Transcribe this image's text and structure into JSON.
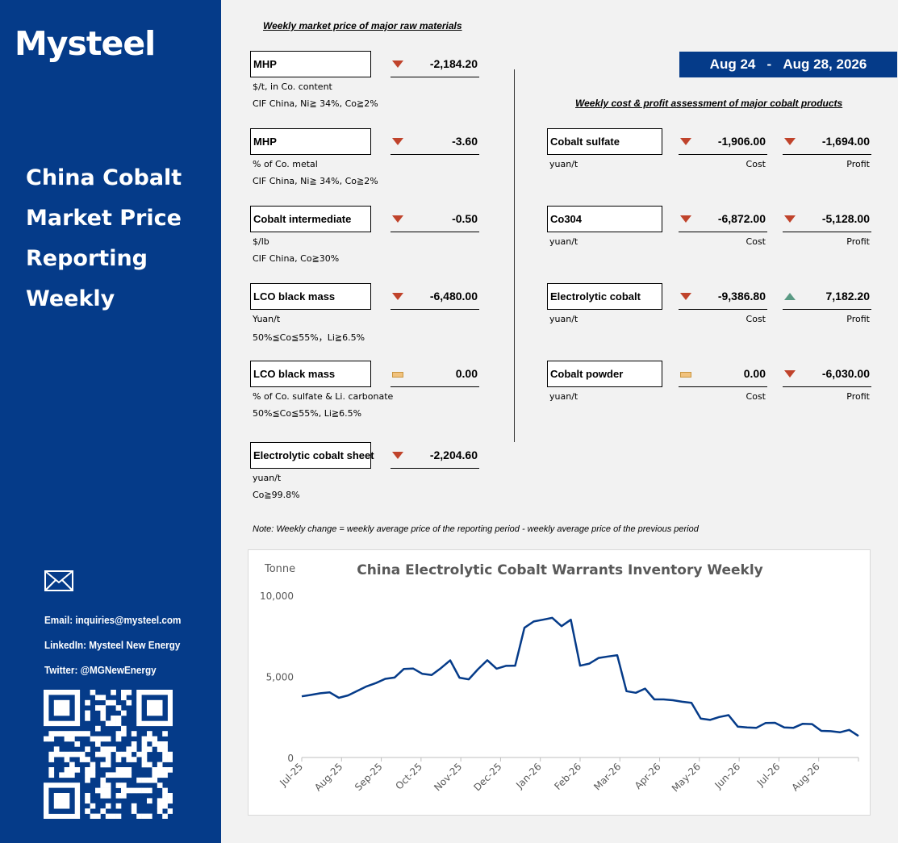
{
  "sidebar": {
    "logo": "Mysteel",
    "title_lines": [
      "China Cobalt",
      "Market Price",
      "Reporting",
      "Weekly"
    ],
    "email": "Email: inquiries@mysteel.com",
    "linkedin": "LinkedIn: Mysteel New Energy",
    "twitter": "Twitter: @MGNewEnergy",
    "icons": {
      "mail": "envelope-icon",
      "qr": "qr-code"
    }
  },
  "raw_heading": "Weekly market price of major raw materials",
  "cost_heading": "Weekly cost & profit assessment of major cobalt products",
  "date": {
    "start": "Aug 24",
    "sep": "-",
    "end": "Aug 28, 2026"
  },
  "raw_materials": [
    {
      "name": "MHP",
      "change": "-2,184.20",
      "trend": "down",
      "line1": "$/t, in Co. content",
      "line2": "CIF China, Ni≧ 34%, Co≧2%"
    },
    {
      "name": "MHP",
      "change": "-3.60",
      "trend": "down",
      "line1": "% of Co. metal",
      "line2": "CIF China, Ni≧ 34%, Co≧2%"
    },
    {
      "name": "Cobalt intermediate",
      "change": "-0.50",
      "trend": "down",
      "line1": "$/lb",
      "line2": "CIF China, Co≧30%"
    },
    {
      "name": "LCO black mass",
      "change": "-6,480.00",
      "trend": "down",
      "line1": "Yuan/t",
      "line2": "50%≦Co≦55%，Li≧6.5%"
    },
    {
      "name": "LCO black mass",
      "change": "0.00",
      "trend": "flat",
      "line1": "% of Co. sulfate & Li. carbonate",
      "line2": "50%≦Co≦55%, Li≧6.5%"
    },
    {
      "name": "Electrolytic cobalt sheet",
      "change": "-2,204.60",
      "trend": "down",
      "line1": "yuan/t",
      "line2": "Co≧99.8%"
    }
  ],
  "products": [
    {
      "name": "Cobalt sulfate",
      "unit": "yuan/t",
      "cost": "-1,906.00",
      "cost_trend": "down",
      "profit": "-1,694.00",
      "profit_trend": "down"
    },
    {
      "name": "Co304",
      "unit": "yuan/t",
      "cost": "-6,872.00",
      "cost_trend": "down",
      "profit": "-5,128.00",
      "profit_trend": "down"
    },
    {
      "name": "Electrolytic cobalt",
      "unit": "yuan/t",
      "cost": "-9,386.80",
      "cost_trend": "down",
      "profit": "7,182.20",
      "profit_trend": "up"
    },
    {
      "name": "Cobalt powder",
      "unit": "yuan/t",
      "cost": "0.00",
      "cost_trend": "flat",
      "profit": "-6,030.00",
      "profit_trend": "down"
    }
  ],
  "labels": {
    "cost": "Cost",
    "profit": "Profit"
  },
  "note": "Note: Weekly change = weekly average price of the reporting period - weekly average price of the previous period",
  "colors": {
    "navy": "#053b89",
    "down": "#c0432b",
    "up": "#5a9a84",
    "flat": "#f1c27d"
  },
  "chart_data": {
    "type": "line",
    "title": "China Electrolytic Cobalt Warrants Inventory Weekly",
    "ylabel": "Tonne",
    "ylim": [
      0,
      10000
    ],
    "yticks": [
      "0",
      "5,000",
      "10,000"
    ],
    "xticks": [
      "Jul-25",
      "Aug-25",
      "Sep-25",
      "Oct-25",
      "Nov-25",
      "Dec-25",
      "Jan-26",
      "Feb-26",
      "Mar-26",
      "Apr-26",
      "May-26",
      "Jun-26",
      "Jul-26",
      "Aug-26"
    ],
    "grid": false,
    "series": [
      {
        "color": "#053b89",
        "values": [
          3770,
          3860,
          3960,
          4020,
          3680,
          3830,
          4110,
          4390,
          4590,
          4850,
          4930,
          5460,
          5490,
          5160,
          5090,
          5510,
          5990,
          4920,
          4820,
          5450,
          6000,
          5480,
          5650,
          5660,
          8000,
          8390,
          8500,
          8610,
          8100,
          8500,
          5660,
          5790,
          6140,
          6230,
          6310,
          4090,
          3990,
          4250,
          3580,
          3580,
          3530,
          3440,
          3370,
          2400,
          2320,
          2500,
          2610,
          1900,
          1850,
          1830,
          2130,
          2140,
          1850,
          1830,
          2080,
          2060,
          1640,
          1620,
          1550,
          1700,
          1330
        ]
      }
    ]
  }
}
